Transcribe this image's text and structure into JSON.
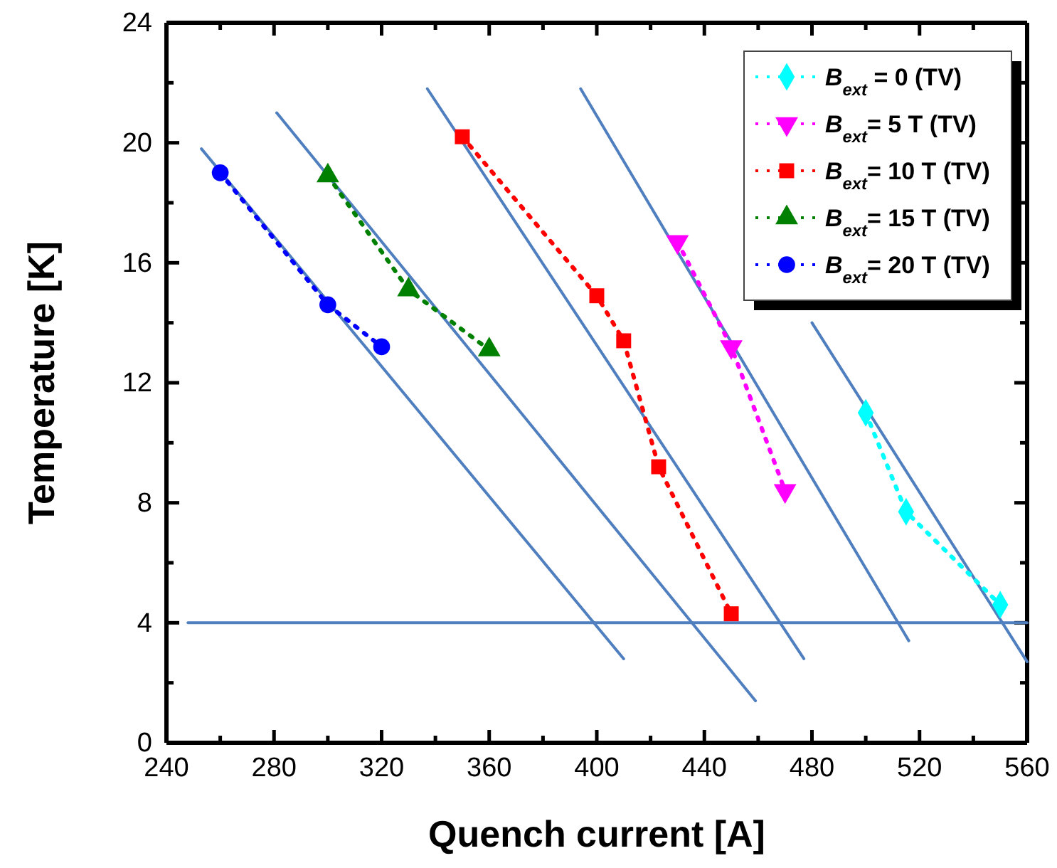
{
  "chart_data": {
    "type": "line",
    "xlabel": "Quench current [A]",
    "ylabel": "Temperature [K]",
    "xlim": [
      240,
      560
    ],
    "ylim": [
      0,
      24
    ],
    "xticks": [
      240,
      {
        "value": 260,
        "label": null
      },
      280,
      {
        "value": 300,
        "label": null
      },
      320,
      {
        "value": 340,
        "label": null
      },
      360,
      {
        "value": 380,
        "label": null
      },
      400,
      {
        "value": 420,
        "label": null
      },
      440,
      {
        "value": 460,
        "label": null
      },
      480,
      {
        "value": 500,
        "label": null
      },
      520,
      {
        "value": 540,
        "label": null
      },
      560
    ],
    "yticks": [
      0,
      {
        "value": 2,
        "label": null
      },
      4,
      {
        "value": 6,
        "label": null
      },
      8,
      {
        "value": 10,
        "label": null
      },
      12,
      {
        "value": 14,
        "label": null
      },
      16,
      {
        "value": 18,
        "label": null
      },
      20,
      {
        "value": 22,
        "label": null
      },
      24
    ],
    "grid": false,
    "legend": "top right",
    "line_style": "dotted",
    "series": [
      {
        "name": "B$_{ext}$ = 0 (TV)",
        "color": "#00ffff",
        "marker": "diamond",
        "x": [
          500,
          515,
          550
        ],
        "values": [
          11.0,
          7.7,
          4.6
        ]
      },
      {
        "name": "B$_{ext}$= 5 T (TV)",
        "color": "#ff00ff",
        "marker": "triangle-down",
        "x": [
          430,
          450,
          470
        ],
        "values": [
          16.7,
          13.2,
          8.4
        ]
      },
      {
        "name": "B$_{ext}$= 10 T (TV)",
        "color": "#ff0000",
        "marker": "square",
        "x": [
          350,
          400,
          410,
          423,
          450
        ],
        "values": [
          20.2,
          14.9,
          13.4,
          9.2,
          4.3
        ]
      },
      {
        "name": "B$_{ext}$= 15 T (TV)",
        "color": "#008000",
        "marker": "triangle",
        "x": [
          300,
          330,
          360
        ],
        "values": [
          18.9,
          15.1,
          13.1
        ]
      },
      {
        "name": "B$_{ext}$= 20 T (TV)",
        "color": "#0000ff",
        "marker": "circle",
        "x": [
          260,
          300,
          320
        ],
        "values": [
          19.0,
          14.6,
          13.2
        ]
      },
      {
        "type": "line",
        "color": "#4f7fbf",
        "marker": "none",
        "line_style": "solid",
        "x": [
          253,
          410
        ],
        "values": [
          19.8,
          2.8
        ]
      },
      {
        "type": "line",
        "color": "#4f7fbf",
        "marker": "none",
        "line_style": "solid",
        "x": [
          281,
          459
        ],
        "values": [
          21.0,
          1.4
        ]
      },
      {
        "type": "line",
        "color": "#4f7fbf",
        "marker": "none",
        "line_style": "solid",
        "x": [
          337,
          477
        ],
        "values": [
          21.8,
          2.8
        ]
      },
      {
        "type": "line",
        "color": "#4f7fbf",
        "marker": "none",
        "line_style": "solid",
        "x": [
          394,
          516
        ],
        "values": [
          21.8,
          3.4
        ]
      },
      {
        "type": "line",
        "color": "#4f7fbf",
        "marker": "none",
        "line_style": "solid",
        "x": [
          480,
          560
        ],
        "values": [
          14.0,
          2.7
        ]
      },
      {
        "type": "line",
        "color": "#4f7fbf",
        "marker": "none",
        "line_style": "solid",
        "x": [
          248,
          560
        ],
        "values": [
          4,
          4
        ]
      }
    ]
  }
}
